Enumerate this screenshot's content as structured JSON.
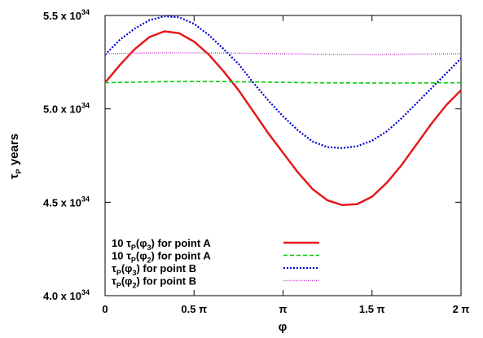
{
  "chart_data": {
    "type": "line",
    "xlabel": "φ",
    "ylabel": {
      "base": "τ",
      "sub": "P",
      "rest": " years"
    },
    "xlim": [
      0,
      2
    ],
    "ylim": [
      4.0,
      5.5
    ],
    "x_unit": "π",
    "grid": false,
    "legend_position": "bottom-left",
    "x_ticks": [
      {
        "value": 0,
        "label": "0"
      },
      {
        "value": 0.5,
        "label": "0.5 π"
      },
      {
        "value": 1,
        "label": "π"
      },
      {
        "value": 1.5,
        "label": "1.5 π"
      },
      {
        "value": 2,
        "label": "2 π"
      }
    ],
    "y_ticks": [
      {
        "value": 4.0,
        "mantissa": "4.0 x 10",
        "exp": "34"
      },
      {
        "value": 4.5,
        "mantissa": "4.5 x 10",
        "exp": "34"
      },
      {
        "value": 5.0,
        "mantissa": "5.0 x 10",
        "exp": "34"
      },
      {
        "value": 5.5,
        "mantissa": "5.5 x 10",
        "exp": "34"
      }
    ],
    "series": [
      {
        "name": "10 τP(φ3) for point A",
        "label_parts": {
          "pre": "10 τ",
          "sub1": "P",
          "mid": "(φ",
          "sub2": "3",
          "post": ") for point A"
        },
        "color": "#e41a1c",
        "dash": "solid",
        "width": 2.5,
        "x": [
          0,
          0.0833,
          0.1667,
          0.25,
          0.3333,
          0.4167,
          0.5,
          0.5833,
          0.6667,
          0.75,
          0.8333,
          0.9167,
          1.0,
          1.0833,
          1.1667,
          1.25,
          1.3333,
          1.4167,
          1.5,
          1.5833,
          1.6667,
          1.75,
          1.8333,
          1.9167,
          2.0
        ],
        "y": [
          5.14,
          5.235,
          5.32,
          5.385,
          5.415,
          5.405,
          5.36,
          5.29,
          5.2,
          5.1,
          4.985,
          4.87,
          4.765,
          4.66,
          4.57,
          4.51,
          4.485,
          4.49,
          4.53,
          4.605,
          4.7,
          4.81,
          4.92,
          5.02,
          5.1
        ]
      },
      {
        "name": "10 τP(φ2) for point A",
        "label_parts": {
          "pre": "10 τ",
          "sub1": "P",
          "mid": "(φ",
          "sub2": "2",
          "post": ") for point A"
        },
        "color": "#00cc00",
        "dash": "5,3",
        "width": 1.6,
        "x": [
          0,
          0.1667,
          0.3333,
          0.5,
          0.6667,
          0.8333,
          1.0,
          1.1667,
          1.3333,
          1.5,
          1.6667,
          1.8333,
          2.0
        ],
        "y": [
          5.14,
          5.143,
          5.146,
          5.147,
          5.146,
          5.144,
          5.142,
          5.14,
          5.139,
          5.138,
          5.138,
          5.139,
          5.14
        ]
      },
      {
        "name": "τP(φ3) for point B",
        "label_parts": {
          "pre": "τ",
          "sub1": "P",
          "mid": "(φ",
          "sub2": "3",
          "post": ") for point B"
        },
        "color": "#0000cc",
        "dash": "2,2",
        "width": 2.2,
        "x": [
          0,
          0.0833,
          0.1667,
          0.25,
          0.3333,
          0.4167,
          0.5,
          0.5833,
          0.6667,
          0.75,
          0.8333,
          0.9167,
          1.0,
          1.0833,
          1.1667,
          1.25,
          1.3333,
          1.4167,
          1.5,
          1.5833,
          1.6667,
          1.75,
          1.8333,
          1.9167,
          2.0
        ],
        "y": [
          5.29,
          5.37,
          5.43,
          5.475,
          5.495,
          5.49,
          5.455,
          5.395,
          5.32,
          5.24,
          5.14,
          5.045,
          4.96,
          4.885,
          4.825,
          4.795,
          4.79,
          4.8,
          4.83,
          4.88,
          4.95,
          5.03,
          5.11,
          5.19,
          5.27
        ]
      },
      {
        "name": "τP(φ2) for point B",
        "label_parts": {
          "pre": "τ",
          "sub1": "P",
          "mid": "(φ",
          "sub2": "2",
          "post": ") for point B"
        },
        "color": "#cc33cc",
        "dash": "1,1.5",
        "width": 1.4,
        "x": [
          0,
          0.1667,
          0.3333,
          0.5,
          0.6667,
          0.8333,
          1.0,
          1.1667,
          1.3333,
          1.5,
          1.6667,
          1.8333,
          2.0
        ],
        "y": [
          5.295,
          5.298,
          5.3,
          5.3,
          5.299,
          5.297,
          5.295,
          5.293,
          5.292,
          5.292,
          5.293,
          5.294,
          5.295
        ]
      }
    ]
  }
}
